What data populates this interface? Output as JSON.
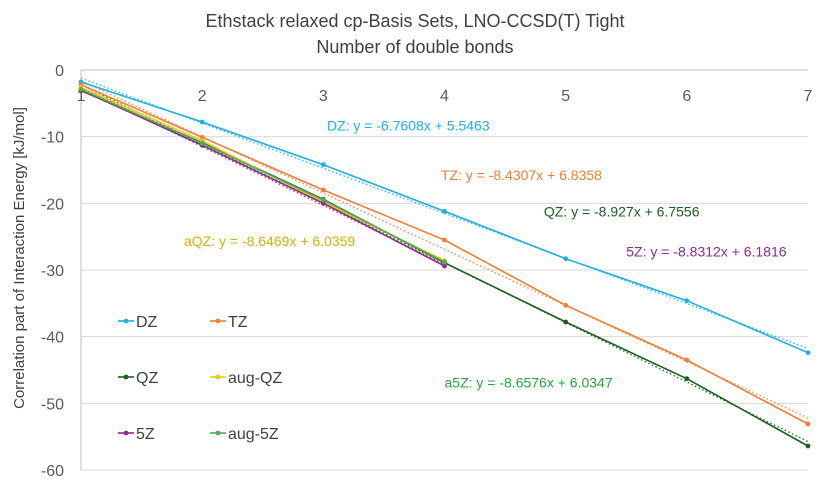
{
  "chart_data": {
    "type": "line",
    "title": "Ethstack relaxed cp-Basis Sets, LNO-CCSD(T) Tight",
    "subtitle": "Number of double bonds",
    "xlabel": "",
    "ylabel": "Correlation part of Interaction Energy [kJ/mol]",
    "xlim": [
      1,
      7
    ],
    "ylim": [
      -60,
      0
    ],
    "x_ticks": [
      1,
      2,
      3,
      4,
      5,
      6,
      7
    ],
    "y_ticks": [
      0,
      -10,
      -20,
      -30,
      -40,
      -50,
      -60
    ],
    "grid": "horizontal",
    "x_axis_position": "top",
    "series": [
      {
        "name": "DZ",
        "color": "#1ab1e0",
        "x": [
          1,
          2,
          3,
          4,
          5,
          6,
          7
        ],
        "values": [
          -1.8,
          -7.8,
          -14.2,
          -21.2,
          -28.3,
          -34.6,
          -42.4
        ]
      },
      {
        "name": "TZ",
        "color": "#f07e36",
        "x": [
          1,
          2,
          3,
          4,
          5,
          6,
          7
        ],
        "values": [
          -2.2,
          -10.1,
          -18.0,
          -25.5,
          -35.3,
          -43.5,
          -53.1
        ]
      },
      {
        "name": "QZ",
        "color": "#1b5e20",
        "x": [
          1,
          2,
          3,
          4,
          5,
          6,
          7
        ],
        "values": [
          -3.1,
          -10.9,
          -19.4,
          -28.9,
          -37.8,
          -46.3,
          -56.4
        ]
      },
      {
        "name": "aug-QZ",
        "color": "#f5c518",
        "x": [
          1,
          2,
          3,
          4
        ],
        "values": [
          -2.6,
          -10.6,
          -19.8,
          -28.6
        ]
      },
      {
        "name": "5Z",
        "color": "#8e2a8e",
        "x": [
          1,
          2,
          3,
          4
        ],
        "values": [
          -3.0,
          -11.3,
          -20.0,
          -29.4
        ]
      },
      {
        "name": "aug-5Z",
        "color": "#4caf50",
        "x": [
          1,
          2,
          3,
          4
        ],
        "values": [
          -2.9,
          -11.0,
          -19.5,
          -28.8
        ]
      }
    ],
    "trendlines": [
      {
        "label": "DZ: y = -6.7608x + 5.5463",
        "color": "#1ab1e0",
        "slope": -6.7608,
        "intercept": 5.5463,
        "x_range": [
          1,
          7
        ]
      },
      {
        "label": "TZ: y = -8.4307x + 6.8358",
        "color": "#f07e36",
        "slope": -8.4307,
        "intercept": 6.8358,
        "x_range": [
          1,
          7
        ]
      },
      {
        "label": "QZ: y = -8.927x + 6.7556",
        "color": "#1b5e20",
        "slope": -8.927,
        "intercept": 6.7556,
        "x_range": [
          1,
          7
        ]
      },
      {
        "label": "5Z: y = -8.8312x + 6.1816",
        "color": "#8e2a8e",
        "slope": -8.8312,
        "intercept": 6.1816,
        "x_range": [
          1,
          4
        ]
      },
      {
        "label": "aQZ: y = -8.6469x + 6.0359",
        "color": "#d4b106",
        "slope": -8.6469,
        "intercept": 6.0359,
        "x_range": [
          1,
          4
        ]
      },
      {
        "label": "a5Z: y = -8.6576x + 6.0347",
        "color": "#22a83c",
        "slope": -8.6576,
        "intercept": 6.0347,
        "x_range": [
          1,
          4
        ]
      }
    ],
    "legend": {
      "placement": "bottom-left",
      "entries": [
        "DZ",
        "TZ",
        "QZ",
        "aug-QZ",
        "5Z",
        "aug-5Z"
      ]
    }
  }
}
